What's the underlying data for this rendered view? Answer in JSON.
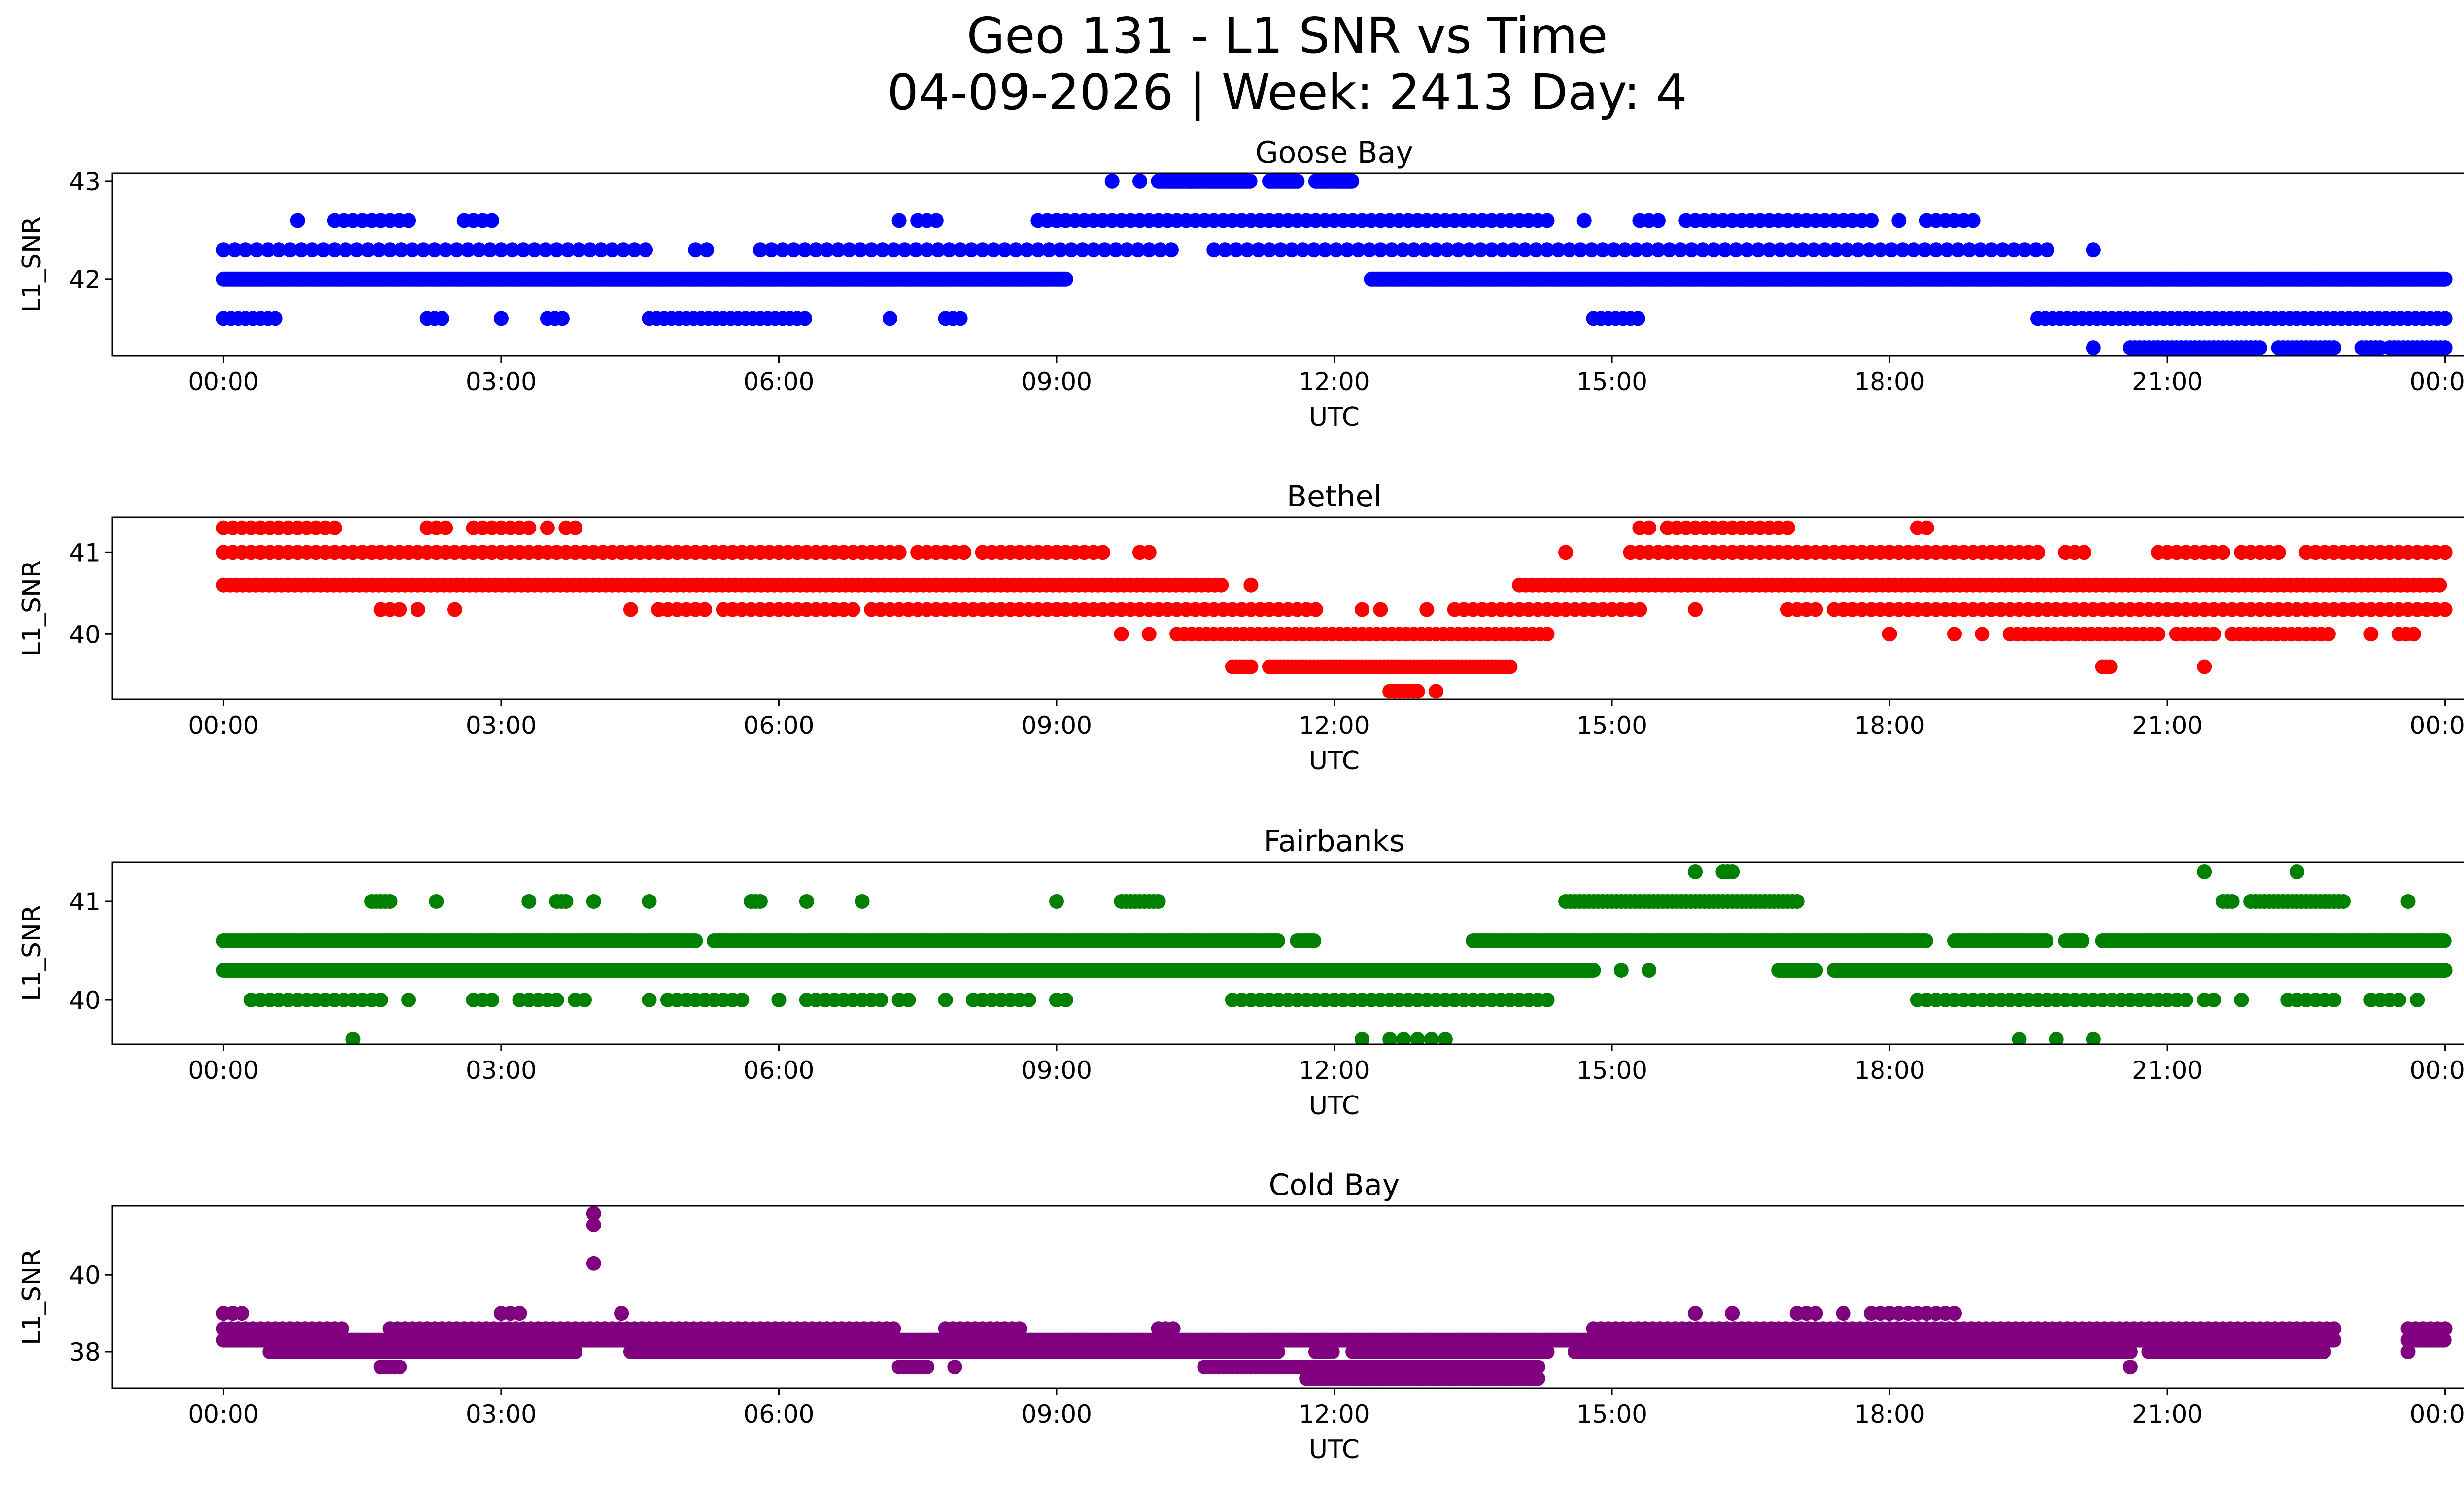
{
  "figure": {
    "title_line1": "Geo 131 - L1 SNR vs Time",
    "title_line2": "04-09-2026 | Week: 2413 Day: 4"
  },
  "chart_data": [
    {
      "type": "scatter",
      "title": "Goose Bay",
      "xlabel": "UTC",
      "ylabel": "L1_SNR",
      "color": "#0000ff",
      "xlim": [
        -1.2,
        25.2
      ],
      "ylim": [
        41.22,
        43.08
      ],
      "yticks": [
        42,
        43
      ],
      "xticks": [
        "00:00",
        "03:00",
        "06:00",
        "09:00",
        "12:00",
        "15:00",
        "18:00",
        "21:00",
        "00:00"
      ],
      "bands": [
        {
          "y": 43.0,
          "segments": [
            [
              9.6,
              9.6
            ],
            [
              9.9,
              9.9
            ],
            [
              10.1,
              11.1
            ],
            [
              11.3,
              11.6
            ],
            [
              11.8,
              12.2
            ]
          ],
          "gaps": 0.03
        },
        {
          "y": 42.6,
          "segments": [
            [
              0.8,
              0.8
            ],
            [
              1.2,
              2.0
            ],
            [
              2.6,
              2.9
            ],
            [
              7.3,
              7.3
            ],
            [
              7.5,
              7.7
            ],
            [
              8.8,
              14.3
            ],
            [
              14.7,
              14.7
            ],
            [
              15.3,
              15.5
            ],
            [
              15.8,
              17.8
            ],
            [
              18.1,
              18.1
            ],
            [
              18.4,
              18.9
            ]
          ],
          "gaps": 0.1
        },
        {
          "y": 42.3,
          "segments": [
            [
              0.0,
              4.6
            ],
            [
              5.1,
              5.3
            ],
            [
              5.8,
              10.3
            ],
            [
              10.7,
              19.7
            ],
            [
              20.2,
              20.2
            ]
          ],
          "gaps": 0.12
        },
        {
          "y": 42.0,
          "segments": [
            [
              0.0,
              9.1
            ],
            [
              12.4,
              24.0
            ]
          ],
          "gaps": 0.02
        },
        {
          "y": 41.6,
          "segments": [
            [
              0.0,
              0.6
            ],
            [
              2.2,
              2.4
            ],
            [
              3.0,
              3.0
            ],
            [
              3.5,
              3.7
            ],
            [
              4.6,
              6.3
            ],
            [
              7.2,
              7.2
            ],
            [
              7.8,
              8.0
            ],
            [
              14.8,
              15.3
            ],
            [
              19.6,
              24.0
            ]
          ],
          "gaps": 0.08
        },
        {
          "y": 41.3,
          "segments": [
            [
              20.2,
              20.2
            ],
            [
              20.6,
              22.0
            ],
            [
              22.2,
              22.8
            ],
            [
              23.1,
              23.3
            ],
            [
              23.4,
              24.0
            ]
          ],
          "gaps": 0.05
        }
      ]
    },
    {
      "type": "scatter",
      "title": "Bethel",
      "xlabel": "UTC",
      "ylabel": "L1_SNR",
      "color": "#ff0000",
      "xlim": [
        -1.2,
        25.2
      ],
      "ylim": [
        39.2,
        41.43
      ],
      "yticks": [
        40,
        41
      ],
      "xticks": [
        "00:00",
        "03:00",
        "06:00",
        "09:00",
        "12:00",
        "15:00",
        "18:00",
        "21:00",
        "00:00"
      ],
      "bands": [
        {
          "y": 41.3,
          "segments": [
            [
              0.0,
              0.9
            ],
            [
              1.0,
              1.2
            ],
            [
              2.2,
              2.4
            ],
            [
              2.7,
              3.3
            ],
            [
              3.5,
              3.5
            ],
            [
              3.7,
              3.8
            ],
            [
              15.3,
              15.4
            ],
            [
              15.6,
              16.9
            ],
            [
              18.3,
              18.4
            ]
          ],
          "gaps": 0.1
        },
        {
          "y": 41.0,
          "segments": [
            [
              0.0,
              7.3
            ],
            [
              7.5,
              8.0
            ],
            [
              8.2,
              9.5
            ],
            [
              9.9,
              10.0
            ],
            [
              14.5,
              14.5
            ],
            [
              15.2,
              19.6
            ],
            [
              19.9,
              20.1
            ],
            [
              20.9,
              21.6
            ],
            [
              21.8,
              22.2
            ],
            [
              22.5,
              24.0
            ]
          ],
          "gaps": 0.1
        },
        {
          "y": 40.6,
          "segments": [
            [
              0.0,
              10.8
            ],
            [
              11.1,
              11.1
            ],
            [
              14.0,
              24.0
            ]
          ],
          "gaps": 0.07
        },
        {
          "y": 40.3,
          "segments": [
            [
              1.7,
              1.9
            ],
            [
              2.1,
              2.1
            ],
            [
              2.5,
              2.5
            ],
            [
              4.4,
              4.4
            ],
            [
              4.7,
              5.2
            ],
            [
              5.4,
              5.7
            ],
            [
              5.8,
              6.8
            ],
            [
              7.0,
              11.8
            ],
            [
              12.3,
              12.3
            ],
            [
              12.5,
              12.5
            ],
            [
              13.0,
              13.0
            ],
            [
              13.3,
              15.3
            ],
            [
              15.9,
              15.9
            ],
            [
              16.9,
              17.2
            ],
            [
              17.4,
              24.0
            ]
          ],
          "gaps": 0.1
        },
        {
          "y": 40.0,
          "segments": [
            [
              9.7,
              9.7
            ],
            [
              10.0,
              10.0
            ],
            [
              10.3,
              14.3
            ],
            [
              18.0,
              18.0
            ],
            [
              18.7,
              18.7
            ],
            [
              19.0,
              19.0
            ],
            [
              19.3,
              20.9
            ],
            [
              21.1,
              21.5
            ],
            [
              21.7,
              22.8
            ],
            [
              23.2,
              23.2
            ],
            [
              23.5,
              23.7
            ]
          ],
          "gaps": 0.08
        },
        {
          "y": 39.6,
          "segments": [
            [
              10.9,
              11.1
            ],
            [
              11.3,
              13.9
            ],
            [
              20.3,
              20.4
            ],
            [
              21.4,
              21.4
            ]
          ],
          "gaps": 0.04
        },
        {
          "y": 39.3,
          "segments": [
            [
              12.6,
              12.9
            ],
            [
              13.1,
              13.1
            ]
          ],
          "gaps": 0.05
        }
      ]
    },
    {
      "type": "scatter",
      "title": "Fairbanks",
      "xlabel": "UTC",
      "ylabel": "L1_SNR",
      "color": "#008000",
      "xlim": [
        -1.2,
        25.2
      ],
      "ylim": [
        39.55,
        41.4
      ],
      "yticks": [
        40,
        41
      ],
      "xticks": [
        "00:00",
        "03:00",
        "06:00",
        "09:00",
        "12:00",
        "15:00",
        "18:00",
        "21:00",
        "00:00"
      ],
      "bands": [
        {
          "y": 41.3,
          "segments": [
            [
              15.9,
              15.9
            ],
            [
              16.2,
              16.3
            ],
            [
              21.4,
              21.4
            ],
            [
              22.4,
              22.4
            ]
          ],
          "gaps": 0.05
        },
        {
          "y": 41.0,
          "segments": [
            [
              1.6,
              1.8
            ],
            [
              2.3,
              2.3
            ],
            [
              3.3,
              3.3
            ],
            [
              3.6,
              3.7
            ],
            [
              4.0,
              4.0
            ],
            [
              4.6,
              4.6
            ],
            [
              5.7,
              5.8
            ],
            [
              6.3,
              6.3
            ],
            [
              6.9,
              6.9
            ],
            [
              9.0,
              9.0
            ],
            [
              9.7,
              10.1
            ],
            [
              14.5,
              17.0
            ],
            [
              21.6,
              21.7
            ],
            [
              21.9,
              22.9
            ],
            [
              23.6,
              23.6
            ]
          ],
          "gaps": 0.05
        },
        {
          "y": 40.6,
          "segments": [
            [
              0.0,
              5.1
            ],
            [
              5.3,
              11.4
            ],
            [
              11.6,
              11.8
            ],
            [
              13.5,
              18.4
            ],
            [
              18.7,
              19.7
            ],
            [
              19.9,
              20.1
            ],
            [
              20.3,
              24.0
            ]
          ],
          "gaps": 0.03
        },
        {
          "y": 40.3,
          "segments": [
            [
              0.0,
              14.8
            ],
            [
              15.1,
              15.1
            ],
            [
              15.4,
              15.4
            ],
            [
              16.8,
              17.2
            ],
            [
              17.4,
              24.0
            ]
          ],
          "gaps": 0.02
        },
        {
          "y": 40.0,
          "segments": [
            [
              0.3,
              1.7
            ],
            [
              2.0,
              2.0
            ],
            [
              2.7,
              2.9
            ],
            [
              3.2,
              3.6
            ],
            [
              3.8,
              3.9
            ],
            [
              4.6,
              4.6
            ],
            [
              4.8,
              5.6
            ],
            [
              6.0,
              6.0
            ],
            [
              6.3,
              7.1
            ],
            [
              7.3,
              7.4
            ],
            [
              7.8,
              7.8
            ],
            [
              8.1,
              8.7
            ],
            [
              9.0,
              9.0
            ],
            [
              9.1,
              9.1
            ],
            [
              10.9,
              14.3
            ],
            [
              18.3,
              21.2
            ],
            [
              21.4,
              21.5
            ],
            [
              21.8,
              21.8
            ],
            [
              22.3,
              22.8
            ],
            [
              23.2,
              23.5
            ],
            [
              23.7,
              23.7
            ]
          ],
          "gaps": 0.1
        },
        {
          "y": 39.6,
          "segments": [
            [
              1.4,
              1.4
            ],
            [
              12.3,
              12.3
            ],
            [
              12.6,
              13.2
            ],
            [
              19.4,
              19.4
            ],
            [
              19.8,
              19.8
            ],
            [
              20.2,
              20.2
            ]
          ],
          "gaps": 0.15
        }
      ]
    },
    {
      "type": "scatter",
      "title": "Cold Bay",
      "xlabel": "UTC",
      "ylabel": "L1_SNR",
      "color": "#800080",
      "xlim": [
        -1.2,
        25.2
      ],
      "ylim": [
        37.05,
        41.8
      ],
      "yticks": [
        38,
        40
      ],
      "xticks": [
        "00:00",
        "03:00",
        "06:00",
        "09:00",
        "12:00",
        "15:00",
        "18:00",
        "21:00",
        "00:00"
      ],
      "bands": [
        {
          "y": 39.0,
          "segments": [
            [
              0.0,
              0.2
            ],
            [
              3.0,
              3.2
            ],
            [
              4.3,
              4.3
            ],
            [
              15.9,
              15.9
            ],
            [
              16.3,
              16.3
            ],
            [
              17.0,
              17.2
            ],
            [
              17.5,
              17.5
            ],
            [
              17.8,
              18.7
            ]
          ],
          "gaps": 0.1
        },
        {
          "y": 38.6,
          "segments": [
            [
              0.0,
              1.3
            ],
            [
              1.8,
              7.3
            ],
            [
              7.8,
              8.6
            ],
            [
              10.1,
              10.3
            ],
            [
              14.8,
              22.8
            ],
            [
              23.6,
              24.0
            ]
          ],
          "gaps": 0.08
        },
        {
          "y": 38.3,
          "segments": [
            [
              0.0,
              22.8
            ],
            [
              23.6,
              24.0
            ]
          ],
          "gaps": 0.03
        },
        {
          "y": 38.0,
          "segments": [
            [
              0.5,
              3.8
            ],
            [
              4.4,
              11.4
            ],
            [
              11.8,
              12.0
            ],
            [
              12.2,
              14.3
            ],
            [
              14.6,
              20.6
            ],
            [
              20.8,
              22.7
            ],
            [
              23.6,
              23.6
            ]
          ],
          "gaps": 0.03
        },
        {
          "y": 37.6,
          "segments": [
            [
              1.7,
              1.9
            ],
            [
              7.3,
              7.6
            ],
            [
              7.9,
              7.9
            ],
            [
              10.6,
              14.2
            ],
            [
              20.6,
              20.6
            ]
          ],
          "gaps": 0.05
        },
        {
          "y": 37.3,
          "segments": [
            [
              11.7,
              14.2
            ]
          ],
          "gaps": 0.05
        }
      ],
      "extra_points": [
        {
          "x": 4.0,
          "y": 41.6
        },
        {
          "x": 4.0,
          "y": 41.3
        },
        {
          "x": 4.0,
          "y": 40.3
        },
        {
          "x": 4.3,
          "y": 39.0
        }
      ]
    }
  ]
}
